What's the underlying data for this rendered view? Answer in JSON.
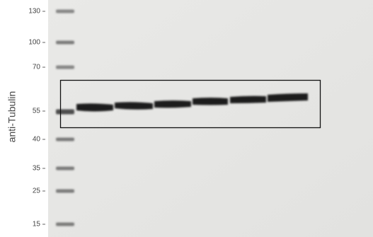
{
  "axis_label": "anti-Tubulin",
  "markers": [
    {
      "label": "130"
    },
    {
      "label": "100"
    },
    {
      "label": "70"
    },
    {
      "label": "55"
    },
    {
      "label": "40"
    },
    {
      "label": "35"
    },
    {
      "label": "25"
    },
    {
      "label": "15"
    }
  ]
}
